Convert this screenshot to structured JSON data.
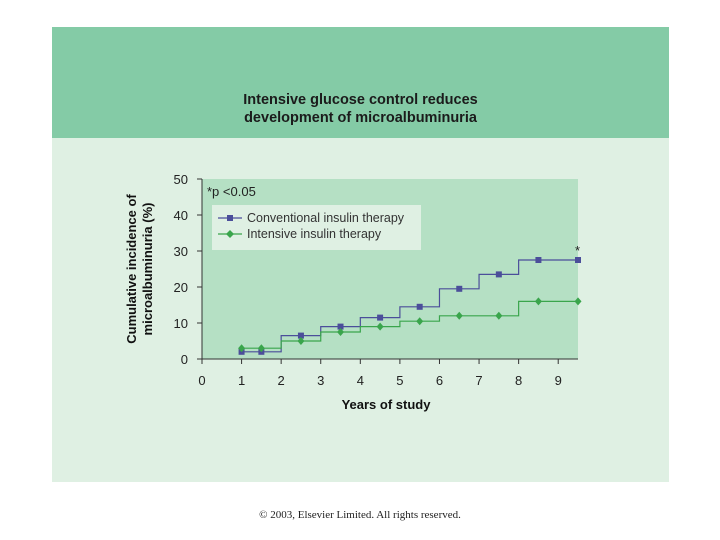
{
  "slide": {
    "title_line1": "Intensive glucose control reduces",
    "title_line2": "development of microalbuminuria",
    "copyright": "© 2003, Elsevier Limited. All rights reserved."
  },
  "colors": {
    "header_band": "#84cba6",
    "panel_bg": "#dff0e3",
    "plot_bg": "#b5e0c4",
    "conventional": "#4b4e9a",
    "intensive": "#3aa54c"
  },
  "chart_data": {
    "type": "line",
    "step": true,
    "xlabel": "Years of study",
    "ylabel_line1": "Cumulative incidence of",
    "ylabel_line2": "microalbuminuria (%)",
    "xlim": [
      0,
      9.5
    ],
    "ylim": [
      0,
      50
    ],
    "xticks": [
      "0",
      "1",
      "2",
      "3",
      "4",
      "5",
      "6",
      "7",
      "8",
      "9"
    ],
    "yticks": [
      "0",
      "10",
      "20",
      "30",
      "40",
      "50"
    ],
    "annotation": "*p <0.05",
    "significance_marker": "*",
    "legend_position": "top-left",
    "series": [
      {
        "name": "Conventional insulin therapy",
        "color": "#4b4e9a",
        "marker": "square",
        "x": [
          1,
          1.5,
          2.5,
          3.5,
          4.5,
          5.5,
          6.5,
          7.5,
          8.5,
          9.5
        ],
        "y": [
          2,
          2,
          6.5,
          9,
          11.5,
          14.5,
          19.5,
          23.5,
          27.5,
          27.5
        ],
        "step_x": [
          1,
          2,
          3,
          4,
          5,
          6,
          7,
          8,
          9.5
        ],
        "step_y": [
          2,
          6.5,
          9,
          11.5,
          14.5,
          19.5,
          23.5,
          27.5,
          27.5
        ]
      },
      {
        "name": "Intensive insulin therapy",
        "color": "#3aa54c",
        "marker": "diamond",
        "x": [
          1,
          1.5,
          2.5,
          3.5,
          4.5,
          5.5,
          6.5,
          7.5,
          8.5,
          9.5
        ],
        "y": [
          3,
          3,
          5,
          7.5,
          9,
          10.5,
          12,
          12,
          16,
          16
        ],
        "step_x": [
          1,
          2,
          3,
          4,
          5,
          6,
          7,
          8,
          9.5
        ],
        "step_y": [
          3,
          5,
          7.5,
          9,
          10.5,
          12,
          12,
          16,
          16
        ]
      }
    ]
  }
}
